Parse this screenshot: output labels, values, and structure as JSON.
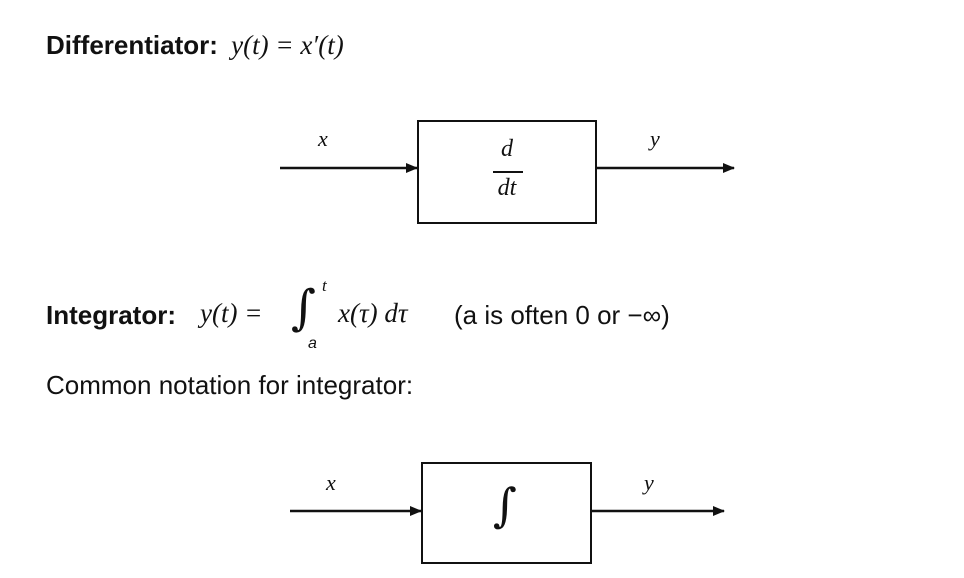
{
  "differentiator": {
    "label": "Differentiator:",
    "lhs": "y(t) = x′(t)",
    "block_num": "d",
    "block_den": "dt",
    "input": "x",
    "output": "y"
  },
  "integrator": {
    "label": "Integrator:",
    "lhs": "y(t) =",
    "upper_limit": "t",
    "lower_limit": "a",
    "integrand": "x(τ) dτ",
    "note": "(a is often 0 or −∞)",
    "block_symbol": "∫",
    "input": "x",
    "output": "y"
  },
  "notation_text": "Common notation for integrator:"
}
